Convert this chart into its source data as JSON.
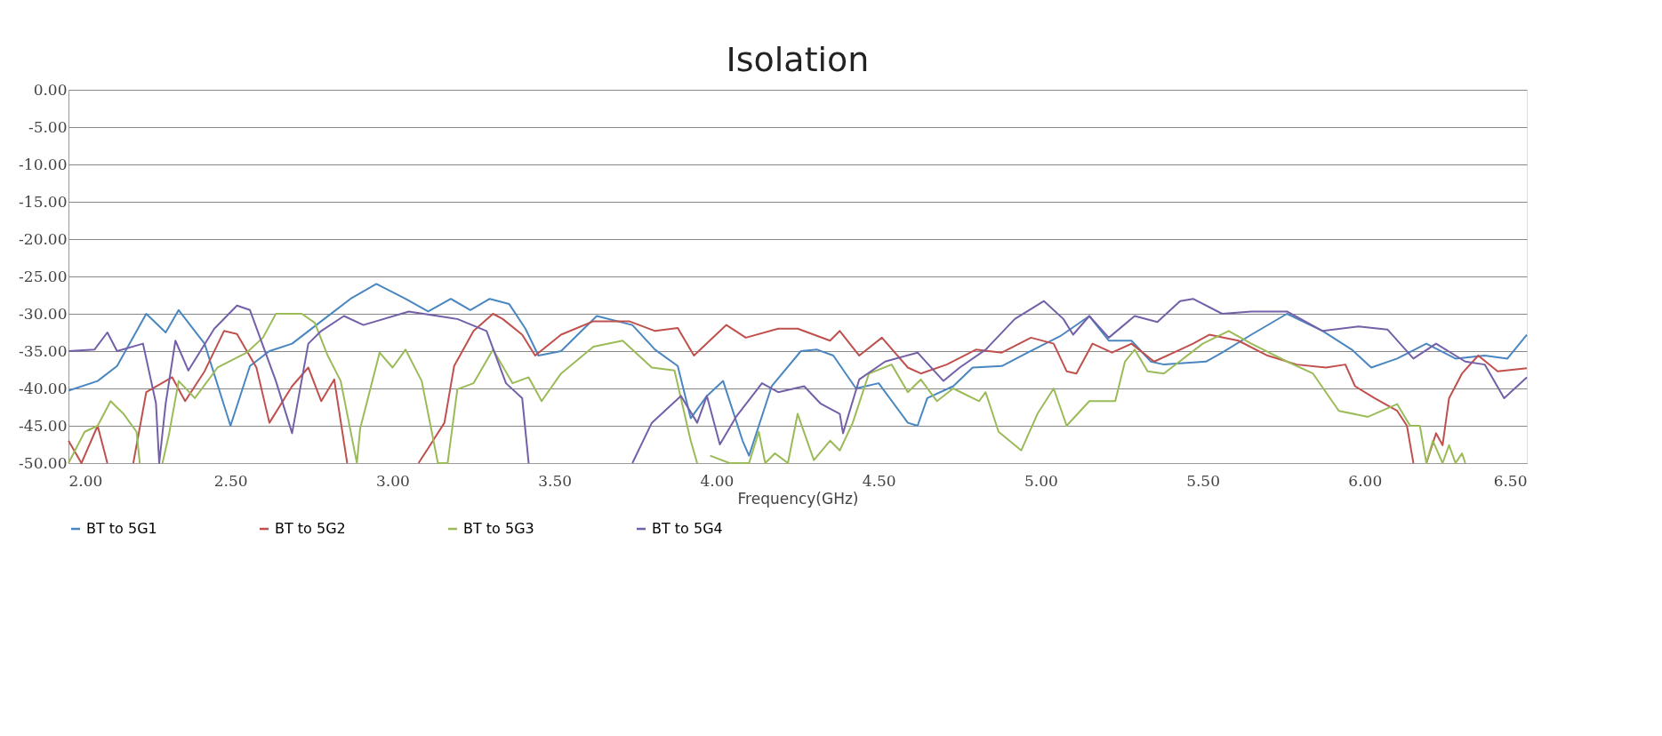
{
  "chart_data": {
    "type": "line",
    "title": "Isolation",
    "xlabel": "Frequency(GHz)",
    "xlim": [
      2.0,
      6.5
    ],
    "xticks": [
      {
        "value": 2.0,
        "label": "2.00"
      },
      {
        "value": 2.5,
        "label": "2.50"
      },
      {
        "value": 3.0,
        "label": "3.00"
      },
      {
        "value": 3.5,
        "label": "3.50"
      },
      {
        "value": 4.0,
        "label": "4.00"
      },
      {
        "value": 4.5,
        "label": "4.50"
      },
      {
        "value": 5.0,
        "label": "5.00"
      },
      {
        "value": 5.5,
        "label": "5.50"
      },
      {
        "value": 6.0,
        "label": "6.00"
      },
      {
        "value": 6.5,
        "label": "6.50"
      }
    ],
    "ylim": [
      -50,
      0
    ],
    "yticks": [
      {
        "value": 0,
        "label": "0.00"
      },
      {
        "value": -5,
        "label": "-5.00"
      },
      {
        "value": -10,
        "label": "-10.00"
      },
      {
        "value": -15,
        "label": "-15.00"
      },
      {
        "value": -20,
        "label": "-20.00"
      },
      {
        "value": -25,
        "label": "-25.00"
      },
      {
        "value": -30,
        "label": "-30.00"
      },
      {
        "value": -35,
        "label": "-35.00"
      },
      {
        "value": -40,
        "label": "-40.00"
      },
      {
        "value": -45,
        "label": "-45.00"
      },
      {
        "value": -50,
        "label": "-50.00"
      }
    ],
    "grid": "y",
    "legend": "bottom",
    "marker": "none",
    "line_style": "solid",
    "series": [
      {
        "name": "BT to 5G1",
        "color": "#4a86c0",
        "x": [
          2.0,
          2.09,
          2.15,
          2.24,
          2.3,
          2.34,
          2.42,
          2.5,
          2.56,
          2.62,
          2.69,
          2.78,
          2.87,
          2.95,
          3.04,
          3.11,
          3.18,
          3.24,
          3.3,
          3.36,
          3.41,
          3.45,
          3.52,
          3.63,
          3.74,
          3.81,
          3.88,
          3.92,
          3.97,
          4.02,
          4.08,
          4.1,
          4.17,
          4.26,
          4.31,
          4.36,
          4.43,
          4.5,
          4.59,
          4.62,
          4.65,
          4.73,
          4.79,
          4.88,
          4.96,
          5.06,
          5.15,
          5.21,
          5.28,
          5.34,
          5.38,
          5.51,
          5.56,
          5.65,
          5.76,
          5.87,
          5.96,
          6.02,
          6.1,
          6.19,
          6.28,
          6.37,
          6.44,
          6.5
        ],
        "values": [
          -40.3,
          -39,
          -37,
          -30,
          -32.5,
          -29.5,
          -34,
          -45,
          -37,
          -35,
          -34,
          -31,
          -28,
          -26,
          -28,
          -29.7,
          -28,
          -29.5,
          -28,
          -28.7,
          -32,
          -35.6,
          -35,
          -30.3,
          -31.5,
          -34.8,
          -37,
          -44,
          -41,
          -39,
          -47,
          -49,
          -39.7,
          -35,
          -34.8,
          -35.6,
          -40,
          -39.3,
          -44.6,
          -45,
          -41.3,
          -39.7,
          -37.2,
          -37,
          -35.2,
          -33,
          -30.3,
          -33.6,
          -33.6,
          -36.4,
          -36.8,
          -36.4,
          -35.2,
          -32.8,
          -30,
          -32.3,
          -34.8,
          -37.2,
          -36,
          -34,
          -36,
          -35.6,
          -36,
          -32.8
        ]
      },
      {
        "name": "BT to 5G2",
        "color": "#c0504d",
        "x": [
          2.0,
          2.04,
          2.09,
          2.12,
          2.16,
          2.2,
          2.24,
          2.32,
          2.36,
          2.42,
          2.48,
          2.52,
          2.58,
          2.62,
          2.69,
          2.74,
          2.78,
          2.82,
          2.86,
          2.97,
          3.08,
          3.11,
          3.16,
          3.19,
          3.25,
          3.31,
          3.34,
          3.4,
          3.44,
          3.52,
          3.62,
          3.73,
          3.81,
          3.88,
          3.93,
          4.03,
          4.09,
          4.19,
          4.25,
          4.35,
          4.38,
          4.44,
          4.51,
          4.59,
          4.63,
          4.71,
          4.8,
          4.88,
          4.97,
          5.04,
          5.08,
          5.11,
          5.16,
          5.22,
          5.28,
          5.35,
          5.43,
          5.47,
          5.52,
          5.61,
          5.7,
          5.79,
          5.88,
          5.94,
          5.97,
          6.03,
          6.1,
          6.13,
          6.15,
          6.17,
          6.19,
          6.22,
          6.24,
          6.26,
          6.3,
          6.35,
          6.41,
          6.5
        ],
        "values": [
          -47,
          -50,
          -45,
          -50,
          null,
          -50,
          -40.5,
          -38.5,
          -41.7,
          -37.7,
          -32.3,
          -32.7,
          -37.2,
          -44.6,
          -39.7,
          -37.2,
          -41.7,
          -38.8,
          -50,
          null,
          -50,
          -48,
          -44.6,
          -37,
          -32.3,
          -30,
          -30.7,
          -32.8,
          -35.6,
          -32.8,
          -31,
          -31,
          -32.3,
          -31.9,
          -35.6,
          -31.5,
          -33.2,
          -32,
          -32,
          -33.6,
          -32.3,
          -35.6,
          -33.2,
          -37.2,
          -38,
          -36.8,
          -34.8,
          -35.2,
          -33.2,
          -34,
          -37.7,
          -38,
          -34,
          -35.2,
          -34,
          -36.4,
          -34.8,
          -34,
          -32.8,
          -33.6,
          -35.6,
          -36.8,
          -37.2,
          -36.8,
          -39.7,
          -41.3,
          -43,
          -45,
          -50,
          null,
          -50,
          -46,
          -47.6,
          -41.3,
          -38,
          -35.6,
          -37.7,
          -37.3
        ]
      },
      {
        "name": "BT to 5G3",
        "color": "#9bbb59",
        "x": [
          2.0,
          2.05,
          2.09,
          2.13,
          2.17,
          2.21,
          2.22,
          2.26,
          2.29,
          2.31,
          2.34,
          2.39,
          2.46,
          2.55,
          2.6,
          2.64,
          2.72,
          2.76,
          2.8,
          2.84,
          2.89,
          2.9,
          2.96,
          3.0,
          3.04,
          3.09,
          3.14,
          3.17,
          3.2,
          3.25,
          3.31,
          3.37,
          3.42,
          3.46,
          3.52,
          3.62,
          3.71,
          3.8,
          3.87,
          3.92,
          3.94,
          3.96,
          3.98,
          4.04,
          4.1,
          4.13,
          4.15,
          4.18,
          4.22,
          4.25,
          4.3,
          4.35,
          4.38,
          4.42,
          4.47,
          4.54,
          4.59,
          4.63,
          4.68,
          4.73,
          4.81,
          4.83,
          4.87,
          4.94,
          4.99,
          5.04,
          5.08,
          5.15,
          5.23,
          5.26,
          5.29,
          5.33,
          5.38,
          5.5,
          5.58,
          5.65,
          5.76,
          5.84,
          5.88,
          5.92,
          6.01,
          6.1,
          6.14,
          6.17,
          6.19,
          6.21,
          6.24,
          6.26,
          6.28,
          6.3,
          6.31
        ],
        "values": [
          -50,
          -45.8,
          -45,
          -41.7,
          -43.4,
          -45.8,
          -50,
          null,
          -50,
          -46.2,
          -39,
          -41.3,
          -37.2,
          -35.2,
          -33.2,
          -30,
          -30,
          -31.2,
          -35.6,
          -39,
          -50,
          -45.4,
          -35.2,
          -37.2,
          -34.8,
          -39,
          -50,
          -50,
          -40.1,
          -39.3,
          -34.8,
          -39.3,
          -38.5,
          -41.7,
          -38,
          -34.4,
          -33.6,
          -37.2,
          -37.6,
          -47,
          -50,
          null,
          -49,
          -50,
          -50,
          -45.8,
          -50,
          -48.7,
          -50,
          -43.4,
          -49.6,
          -47,
          -48.3,
          -44.6,
          -38,
          -36.8,
          -40.5,
          -38.8,
          -41.7,
          -40,
          -41.7,
          -40.5,
          -45.8,
          -48.3,
          -43.4,
          -40,
          -45,
          -41.7,
          -41.7,
          -36.4,
          -34.8,
          -37.7,
          -38,
          -34,
          -32.3,
          -34,
          -36.4,
          -38,
          -40.5,
          -43,
          -43.8,
          -42.1,
          -45,
          -45,
          -50,
          -47,
          -50,
          -47.6,
          -50,
          -48.7,
          -50
        ]
      },
      {
        "name": "BT to 5G4",
        "color": "#7360a8",
        "x": [
          2.0,
          2.08,
          2.12,
          2.15,
          2.23,
          2.27,
          2.28,
          2.3,
          2.33,
          2.37,
          2.45,
          2.52,
          2.56,
          2.64,
          2.69,
          2.74,
          2.78,
          2.85,
          2.91,
          3.05,
          3.14,
          3.2,
          3.29,
          3.35,
          3.4,
          3.42,
          3.6,
          3.74,
          3.8,
          3.84,
          3.89,
          3.94,
          3.97,
          4.01,
          4.06,
          4.14,
          4.19,
          4.27,
          4.32,
          4.38,
          4.39,
          4.44,
          4.52,
          4.62,
          4.7,
          4.75,
          4.83,
          4.92,
          5.01,
          5.07,
          5.1,
          5.15,
          5.21,
          5.29,
          5.36,
          5.43,
          5.47,
          5.56,
          5.65,
          5.76,
          5.87,
          5.98,
          6.07,
          6.15,
          6.22,
          6.31,
          6.37,
          6.43,
          6.5
        ],
        "values": [
          -35,
          -34.8,
          -32.5,
          -35,
          -34,
          -42,
          -50,
          -42,
          -33.6,
          -37.6,
          -32,
          -28.9,
          -29.5,
          -39,
          -46,
          -34,
          -32.3,
          -30.3,
          -31.5,
          -29.7,
          -30.3,
          -30.7,
          -32.3,
          -39.3,
          -41.3,
          -50,
          null,
          -50,
          -44.6,
          -43,
          -41,
          -44.6,
          -41,
          -47.5,
          -43.8,
          -39.3,
          -40.5,
          -39.7,
          -42,
          -43.4,
          -46,
          -38.8,
          -36.4,
          -35.2,
          -39,
          -37.2,
          -34.8,
          -30.7,
          -28.3,
          -30.7,
          -32.8,
          -30.3,
          -33.2,
          -30.3,
          -31.1,
          -28.3,
          -28,
          -30,
          -29.7,
          -29.7,
          -32.3,
          -31.7,
          -32.1,
          -36,
          -34,
          -36.4,
          -36.8,
          -41.3,
          -38.5
        ]
      }
    ]
  }
}
